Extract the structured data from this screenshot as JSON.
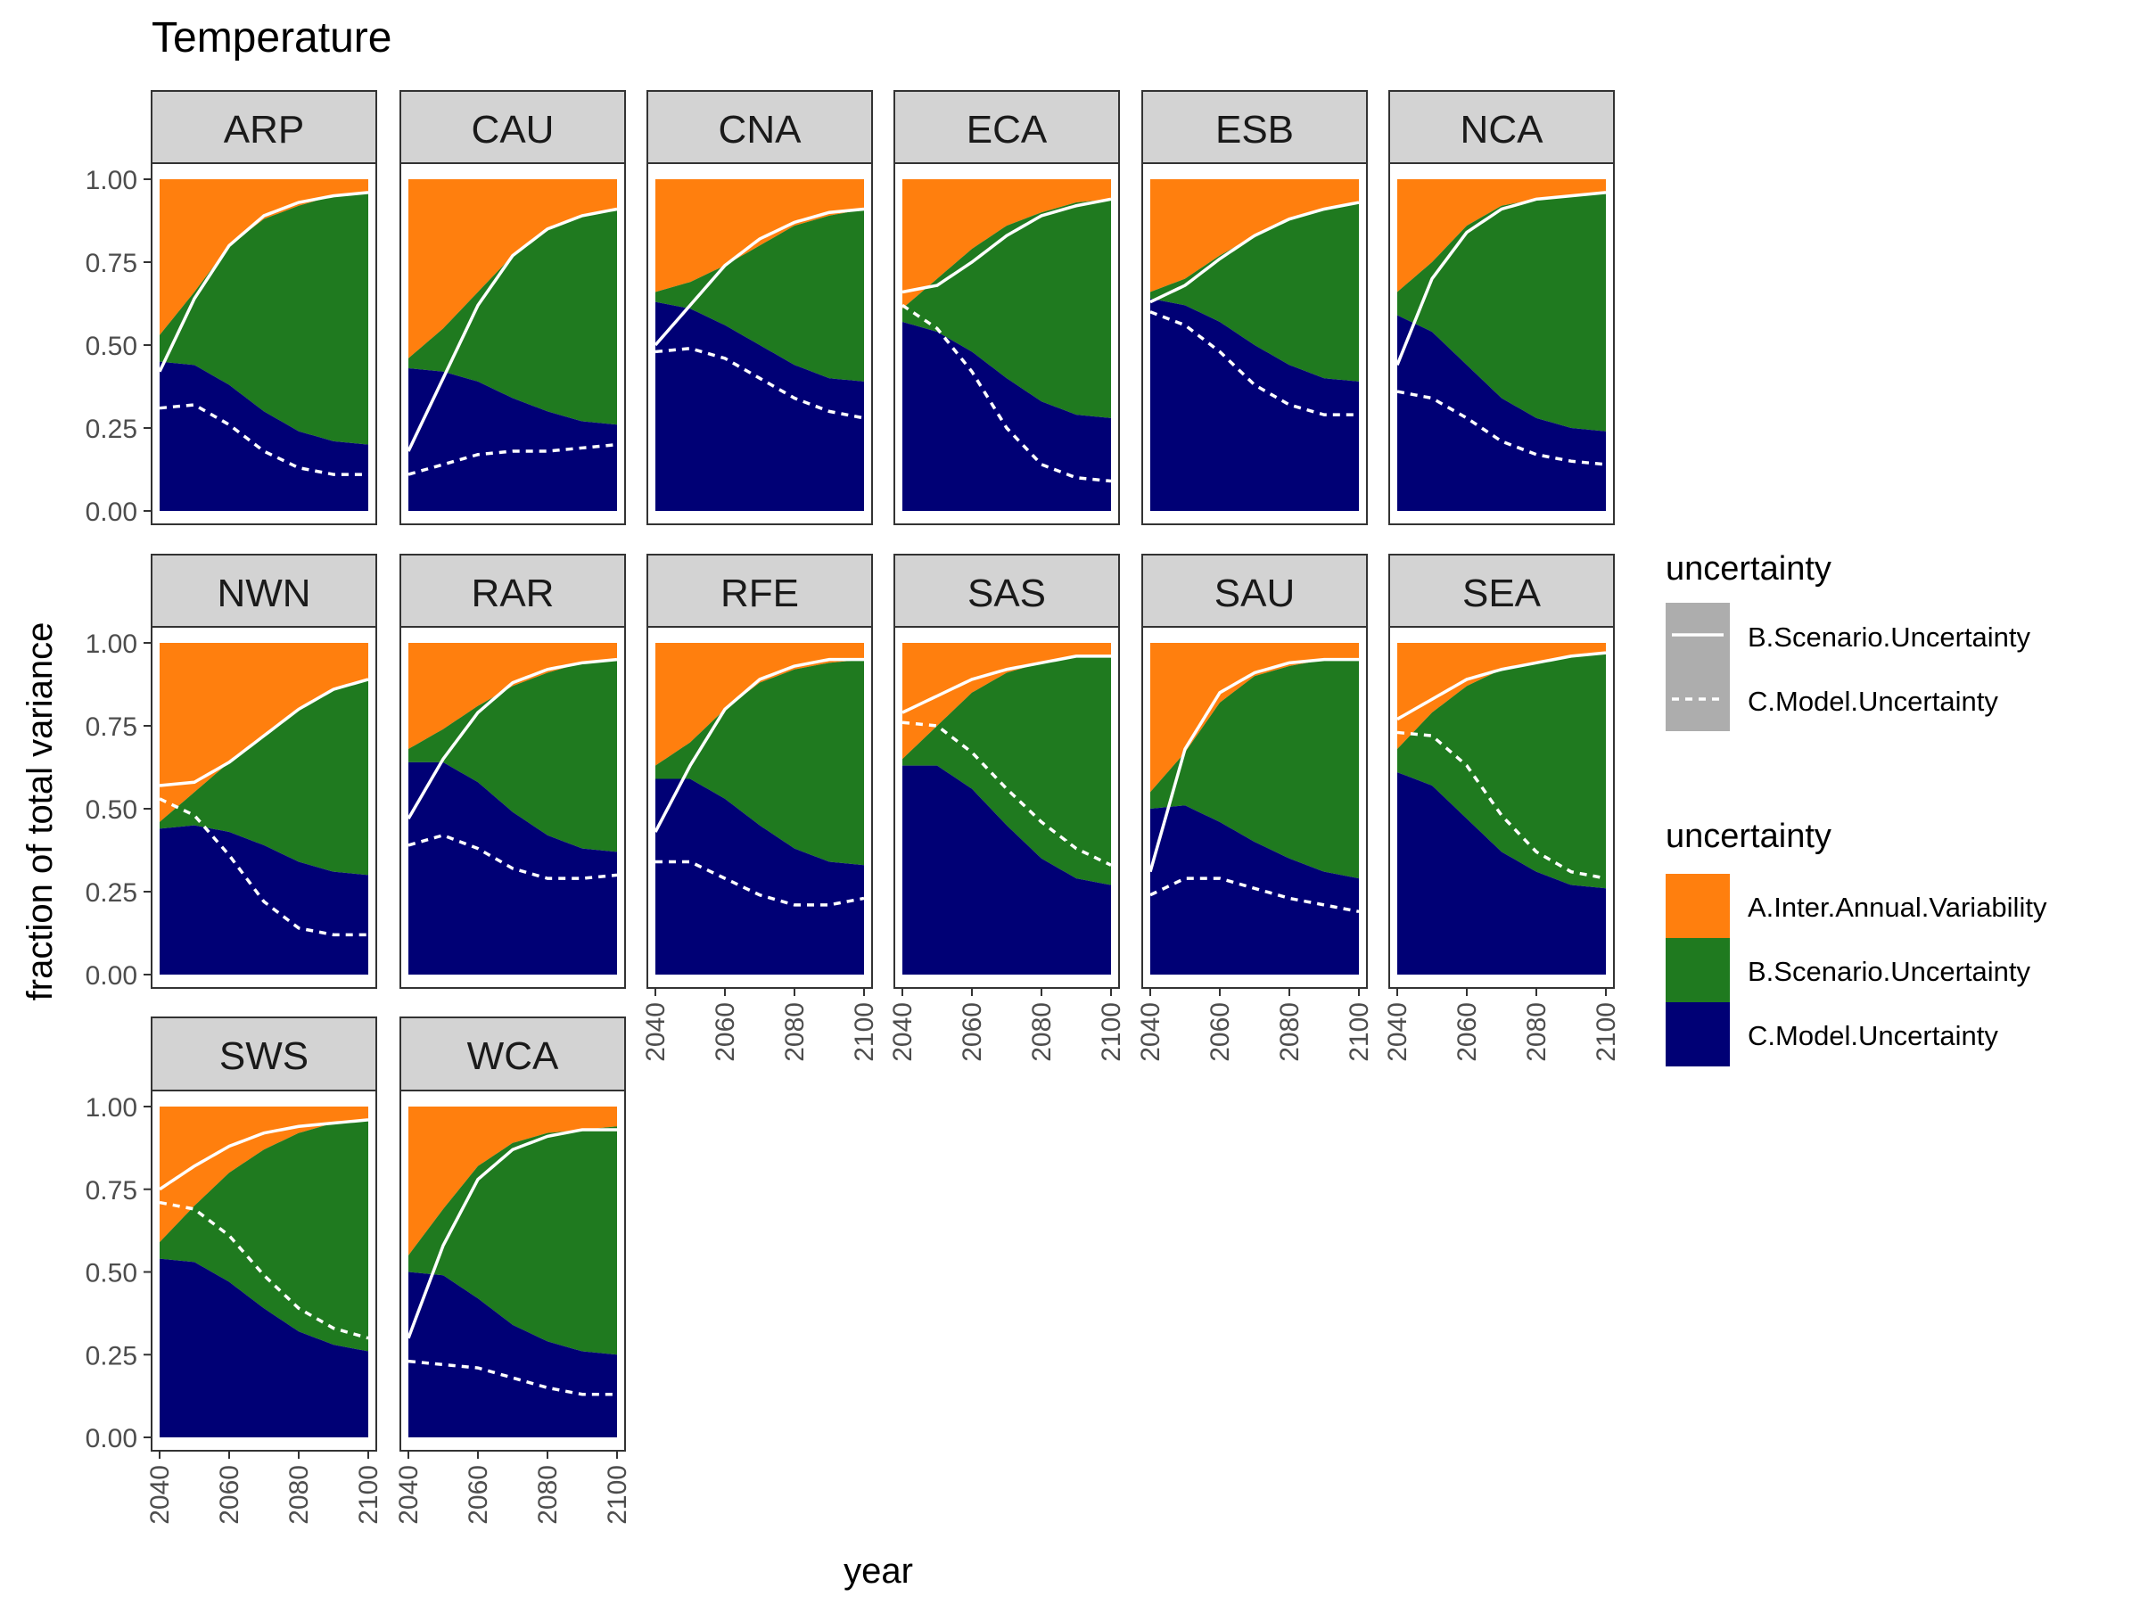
{
  "chart_data": {
    "type": "area",
    "title": "Temperature",
    "xlabel": "year",
    "ylabel": "fraction of total variance",
    "xlim": [
      2040,
      2100
    ],
    "ylim": [
      0,
      1
    ],
    "x_ticks": [
      "2040",
      "2060",
      "2080",
      "2100"
    ],
    "y_ticks": [
      "0.00",
      "0.25",
      "0.50",
      "0.75",
      "1.00"
    ],
    "grid": false,
    "x": [
      2040,
      2050,
      2060,
      2070,
      2080,
      2090,
      2100
    ],
    "legend": {
      "placement": "right",
      "line_title": "uncertainty",
      "line_entries": [
        {
          "label": "B.Scenario.Uncertainty",
          "linestyle": "solid"
        },
        {
          "label": "C.Model.Uncertainty",
          "linestyle": "dashed"
        }
      ],
      "fill_title": "uncertainty",
      "fill_entries": [
        {
          "label": "A.Inter.Annual.Variability",
          "color": "#FF7F0E"
        },
        {
          "label": "B.Scenario.Uncertainty",
          "color": "#1F7A1F"
        },
        {
          "label": "C.Model.Uncertainty",
          "color": "#000075"
        }
      ]
    },
    "colors": {
      "variability": "#FF7F0E",
      "scenario": "#1F7A1F",
      "model": "#000075",
      "strip_bg": "#D3D3D3",
      "lines": "#FFFFFF"
    },
    "panels": [
      {
        "name": "ARP",
        "model_frac": [
          0.45,
          0.44,
          0.38,
          0.3,
          0.24,
          0.21,
          0.2
        ],
        "cum_frac": [
          0.53,
          0.66,
          0.8,
          0.88,
          0.92,
          0.95,
          0.96
        ],
        "scenario_line": [
          0.42,
          0.64,
          0.8,
          0.89,
          0.93,
          0.95,
          0.96
        ],
        "model_line": [
          0.31,
          0.32,
          0.26,
          0.18,
          0.13,
          0.11,
          0.11
        ]
      },
      {
        "name": "CAU",
        "model_frac": [
          0.43,
          0.42,
          0.39,
          0.34,
          0.3,
          0.27,
          0.26
        ],
        "cum_frac": [
          0.46,
          0.55,
          0.66,
          0.77,
          0.85,
          0.89,
          0.91
        ],
        "scenario_line": [
          0.18,
          0.4,
          0.62,
          0.77,
          0.85,
          0.89,
          0.91
        ],
        "model_line": [
          0.11,
          0.14,
          0.17,
          0.18,
          0.18,
          0.19,
          0.2
        ]
      },
      {
        "name": "CNA",
        "model_frac": [
          0.63,
          0.61,
          0.56,
          0.5,
          0.44,
          0.4,
          0.39
        ],
        "cum_frac": [
          0.66,
          0.69,
          0.74,
          0.8,
          0.86,
          0.89,
          0.91
        ],
        "scenario_line": [
          0.5,
          0.62,
          0.74,
          0.82,
          0.87,
          0.9,
          0.91
        ],
        "model_line": [
          0.48,
          0.49,
          0.46,
          0.4,
          0.34,
          0.3,
          0.28
        ]
      },
      {
        "name": "ECA",
        "model_frac": [
          0.57,
          0.54,
          0.48,
          0.4,
          0.33,
          0.29,
          0.28
        ],
        "cum_frac": [
          0.61,
          0.7,
          0.79,
          0.86,
          0.9,
          0.93,
          0.94
        ],
        "scenario_line": [
          0.66,
          0.68,
          0.75,
          0.83,
          0.89,
          0.92,
          0.94
        ],
        "model_line": [
          0.62,
          0.55,
          0.42,
          0.25,
          0.14,
          0.1,
          0.09
        ]
      },
      {
        "name": "ESB",
        "model_frac": [
          0.64,
          0.62,
          0.57,
          0.5,
          0.44,
          0.4,
          0.39
        ],
        "cum_frac": [
          0.66,
          0.7,
          0.77,
          0.83,
          0.88,
          0.91,
          0.93
        ],
        "scenario_line": [
          0.63,
          0.68,
          0.76,
          0.83,
          0.88,
          0.91,
          0.93
        ],
        "model_line": [
          0.6,
          0.56,
          0.48,
          0.38,
          0.32,
          0.29,
          0.29
        ]
      },
      {
        "name": "NCA",
        "model_frac": [
          0.59,
          0.54,
          0.44,
          0.34,
          0.28,
          0.25,
          0.24
        ],
        "cum_frac": [
          0.66,
          0.75,
          0.86,
          0.92,
          0.94,
          0.95,
          0.96
        ],
        "scenario_line": [
          0.44,
          0.7,
          0.84,
          0.91,
          0.94,
          0.95,
          0.96
        ],
        "model_line": [
          0.36,
          0.34,
          0.28,
          0.21,
          0.17,
          0.15,
          0.14
        ]
      },
      {
        "name": "NWN",
        "model_frac": [
          0.44,
          0.45,
          0.43,
          0.39,
          0.34,
          0.31,
          0.3
        ],
        "cum_frac": [
          0.46,
          0.55,
          0.64,
          0.72,
          0.8,
          0.86,
          0.89
        ],
        "scenario_line": [
          0.57,
          0.58,
          0.64,
          0.72,
          0.8,
          0.86,
          0.89
        ],
        "model_line": [
          0.53,
          0.48,
          0.36,
          0.22,
          0.14,
          0.12,
          0.12
        ]
      },
      {
        "name": "RAR",
        "model_frac": [
          0.64,
          0.64,
          0.58,
          0.49,
          0.42,
          0.38,
          0.37
        ],
        "cum_frac": [
          0.68,
          0.74,
          0.81,
          0.87,
          0.91,
          0.94,
          0.95
        ],
        "scenario_line": [
          0.47,
          0.65,
          0.79,
          0.88,
          0.92,
          0.94,
          0.95
        ],
        "model_line": [
          0.39,
          0.42,
          0.38,
          0.32,
          0.29,
          0.29,
          0.3
        ]
      },
      {
        "name": "RFE",
        "model_frac": [
          0.59,
          0.59,
          0.53,
          0.45,
          0.38,
          0.34,
          0.33
        ],
        "cum_frac": [
          0.63,
          0.7,
          0.8,
          0.88,
          0.92,
          0.94,
          0.95
        ],
        "scenario_line": [
          0.43,
          0.63,
          0.8,
          0.89,
          0.93,
          0.95,
          0.95
        ],
        "model_line": [
          0.34,
          0.34,
          0.29,
          0.24,
          0.21,
          0.21,
          0.23
        ]
      },
      {
        "name": "SAS",
        "model_frac": [
          0.63,
          0.63,
          0.56,
          0.45,
          0.35,
          0.29,
          0.27
        ],
        "cum_frac": [
          0.65,
          0.75,
          0.85,
          0.91,
          0.94,
          0.96,
          0.96
        ],
        "scenario_line": [
          0.79,
          0.84,
          0.89,
          0.92,
          0.94,
          0.96,
          0.96
        ],
        "model_line": [
          0.76,
          0.75,
          0.67,
          0.56,
          0.46,
          0.38,
          0.33
        ]
      },
      {
        "name": "SAU",
        "model_frac": [
          0.5,
          0.51,
          0.46,
          0.4,
          0.35,
          0.31,
          0.29
        ],
        "cum_frac": [
          0.55,
          0.67,
          0.82,
          0.9,
          0.93,
          0.95,
          0.95
        ],
        "scenario_line": [
          0.31,
          0.68,
          0.85,
          0.91,
          0.94,
          0.95,
          0.95
        ],
        "model_line": [
          0.24,
          0.29,
          0.29,
          0.26,
          0.23,
          0.21,
          0.19
        ]
      },
      {
        "name": "SEA",
        "model_frac": [
          0.61,
          0.57,
          0.47,
          0.37,
          0.31,
          0.27,
          0.26
        ],
        "cum_frac": [
          0.68,
          0.79,
          0.87,
          0.92,
          0.94,
          0.96,
          0.97
        ],
        "scenario_line": [
          0.77,
          0.83,
          0.89,
          0.92,
          0.94,
          0.96,
          0.97
        ],
        "model_line": [
          0.73,
          0.72,
          0.63,
          0.48,
          0.37,
          0.31,
          0.29
        ]
      },
      {
        "name": "SWS",
        "model_frac": [
          0.54,
          0.53,
          0.47,
          0.39,
          0.32,
          0.28,
          0.26
        ],
        "cum_frac": [
          0.59,
          0.7,
          0.8,
          0.87,
          0.92,
          0.95,
          0.96
        ],
        "scenario_line": [
          0.75,
          0.82,
          0.88,
          0.92,
          0.94,
          0.95,
          0.96
        ],
        "model_line": [
          0.71,
          0.69,
          0.61,
          0.49,
          0.39,
          0.33,
          0.3
        ]
      },
      {
        "name": "WCA",
        "model_frac": [
          0.5,
          0.49,
          0.42,
          0.34,
          0.29,
          0.26,
          0.25
        ],
        "cum_frac": [
          0.55,
          0.69,
          0.82,
          0.89,
          0.92,
          0.93,
          0.94
        ],
        "scenario_line": [
          0.3,
          0.58,
          0.78,
          0.87,
          0.91,
          0.93,
          0.93
        ],
        "model_line": [
          0.23,
          0.22,
          0.21,
          0.18,
          0.15,
          0.13,
          0.13
        ]
      }
    ]
  }
}
